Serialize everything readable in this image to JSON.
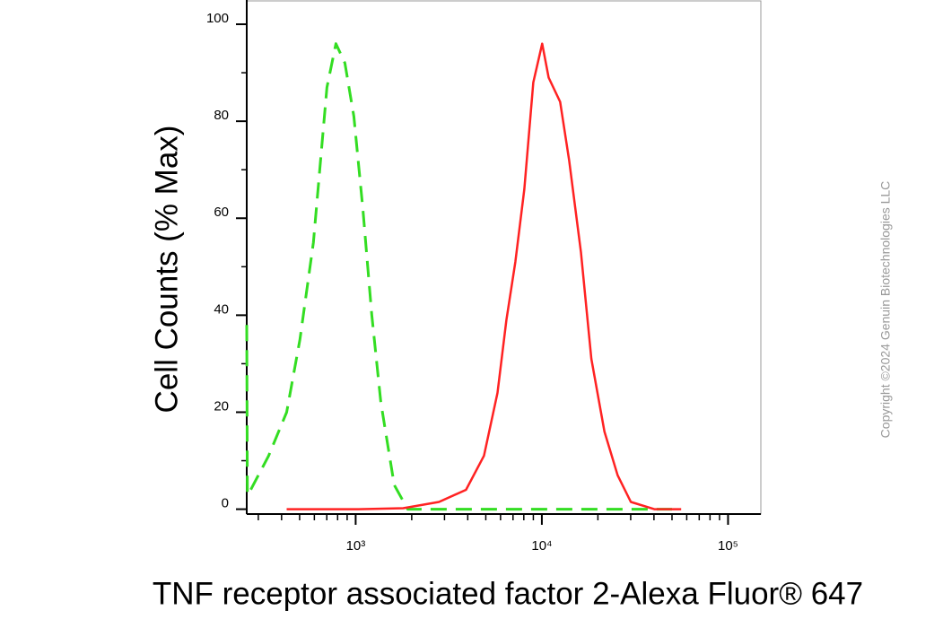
{
  "chart_data": {
    "type": "line",
    "xlabel": "TNF receptor associated factor 2-Alexa Fluor® 647",
    "ylabel": "Cell Counts (% Max)",
    "watermark": "Copyright ©2024 Genuin Biotechnologies LLC",
    "xscale": "log",
    "xlim": [
      260,
      150000
    ],
    "ylim": [
      -1,
      105
    ],
    "xticks": [
      {
        "value": 1000,
        "label": "10³"
      },
      {
        "value": 10000,
        "label": "10⁴"
      },
      {
        "value": 100000,
        "label": "10⁵"
      }
    ],
    "xminorticks": [
      300,
      400,
      500,
      600,
      700,
      800,
      900,
      2000,
      3000,
      4000,
      5000,
      6000,
      7000,
      8000,
      9000,
      20000,
      30000,
      40000,
      50000,
      60000,
      70000,
      80000,
      90000
    ],
    "yticks": [
      0,
      20,
      40,
      60,
      80,
      100
    ],
    "yminorticks": [
      10,
      30,
      50,
      70,
      90
    ],
    "series": [
      {
        "color": "#33dd22",
        "dashed": true,
        "x": [
          260,
          262,
          273,
          341,
          426,
          502,
          593,
          701,
          783,
          875,
          978,
          1093,
          1221,
          1365,
          1611,
          1903,
          50000
        ],
        "values": [
          38,
          3,
          4,
          11,
          20,
          35,
          55,
          87,
          96,
          92,
          81,
          62,
          40,
          22,
          5,
          0,
          0
        ]
      },
      {
        "color": "#ff2222",
        "dashed": false,
        "x": [
          426,
          1034,
          1800,
          2803,
          3914,
          4889,
          5776,
          6452,
          7207,
          8051,
          8993,
          10045,
          10876,
          12541,
          14008,
          16207,
          18434,
          21696,
          25538,
          30060,
          40190,
          56000
        ],
        "values": [
          0,
          0,
          0.2,
          1.5,
          4,
          11,
          24,
          39,
          51,
          66,
          88,
          96,
          89,
          84,
          72,
          53,
          31,
          16,
          7,
          1.5,
          0,
          0
        ]
      }
    ]
  }
}
